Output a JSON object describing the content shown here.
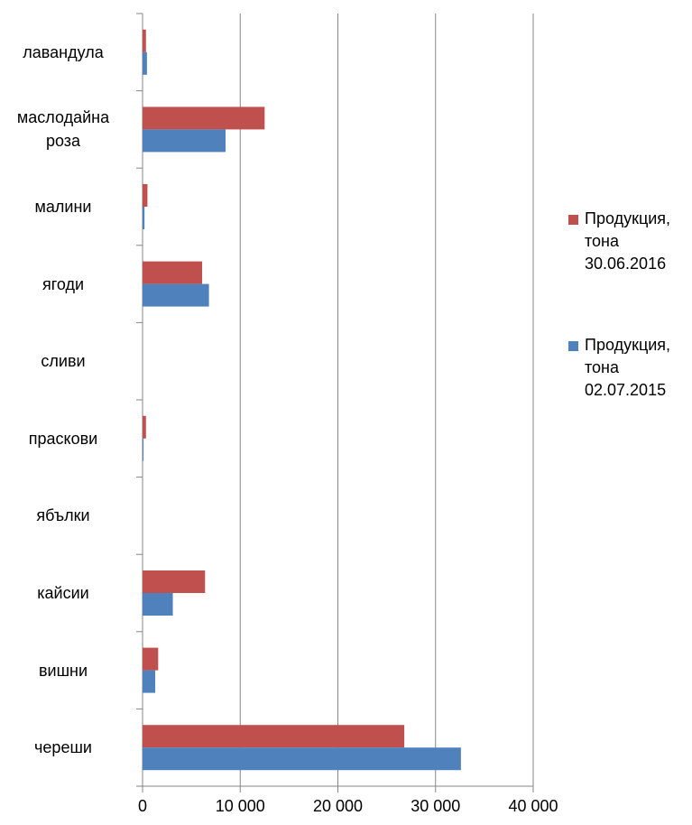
{
  "chart_data": {
    "type": "bar",
    "orientation": "horizontal",
    "categories": [
      "лавандула",
      "маслодайна роза",
      "малини",
      "ягоди",
      "сливи",
      "праскови",
      "ябълки",
      "кайсии",
      "вишни",
      "череши"
    ],
    "series": [
      {
        "name": "Продукция, тона 30.06.2016",
        "color": "#c0504d",
        "values": [
          350,
          12500,
          500,
          6100,
          0,
          350,
          0,
          6400,
          1600,
          26800
        ]
      },
      {
        "name": "Продукция, тона 02.07.2015",
        "color": "#4f81bd",
        "values": [
          450,
          8500,
          200,
          6800,
          0,
          100,
          0,
          3100,
          1300,
          32600
        ]
      }
    ],
    "xlim": [
      0,
      40000
    ],
    "xticks": [
      0,
      {
        "value": 10000,
        "label": "10 000"
      },
      {
        "value": 20000,
        "label": "20 000"
      },
      {
        "value": 30000,
        "label": "30 000"
      },
      {
        "value": 40000,
        "label": "40 000"
      }
    ],
    "grid": true,
    "legend": "right"
  }
}
